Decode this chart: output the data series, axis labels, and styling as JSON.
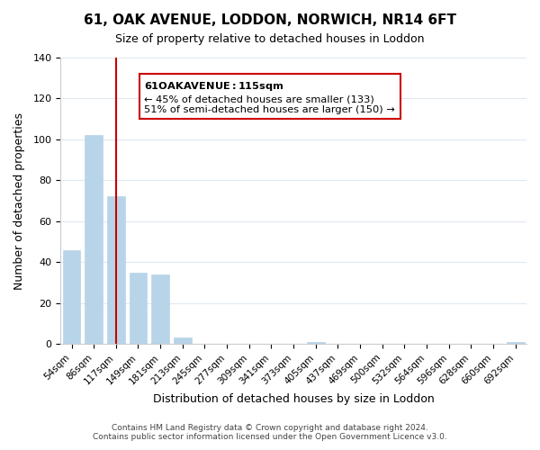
{
  "title": "61, OAK AVENUE, LODDON, NORWICH, NR14 6FT",
  "subtitle": "Size of property relative to detached houses in Loddon",
  "xlabel": "Distribution of detached houses by size in Loddon",
  "ylabel": "Number of detached properties",
  "categories": [
    "54sqm",
    "86sqm",
    "117sqm",
    "149sqm",
    "181sqm",
    "213sqm",
    "245sqm",
    "277sqm",
    "309sqm",
    "341sqm",
    "373sqm",
    "405sqm",
    "437sqm",
    "469sqm",
    "500sqm",
    "532sqm",
    "564sqm",
    "596sqm",
    "628sqm",
    "660sqm",
    "692sqm"
  ],
  "values": [
    46,
    102,
    72,
    35,
    34,
    3,
    0,
    0,
    0,
    0,
    0,
    1,
    0,
    0,
    0,
    0,
    0,
    0,
    0,
    0,
    1
  ],
  "bar_color": "#b8d4e8",
  "bar_edge_color": "#b8d4e8",
  "highlight_bar_index": 2,
  "highlight_bar_color": "#b8d4e8",
  "highlight_line_color": "#cc0000",
  "ylim": [
    0,
    140
  ],
  "yticks": [
    0,
    20,
    40,
    60,
    80,
    100,
    120,
    140
  ],
  "annotation_title": "61 OAK AVENUE: 115sqm",
  "annotation_line1": "← 45% of detached houses are smaller (133)",
  "annotation_line2": "51% of semi-detached houses are larger (150) →",
  "annotation_box_color": "#ffffff",
  "annotation_box_edge_color": "#cc0000",
  "footer_line1": "Contains HM Land Registry data © Crown copyright and database right 2024.",
  "footer_line2": "Contains public sector information licensed under the Open Government Licence v3.0.",
  "background_color": "#ffffff",
  "grid_color": "#e0e8f0"
}
